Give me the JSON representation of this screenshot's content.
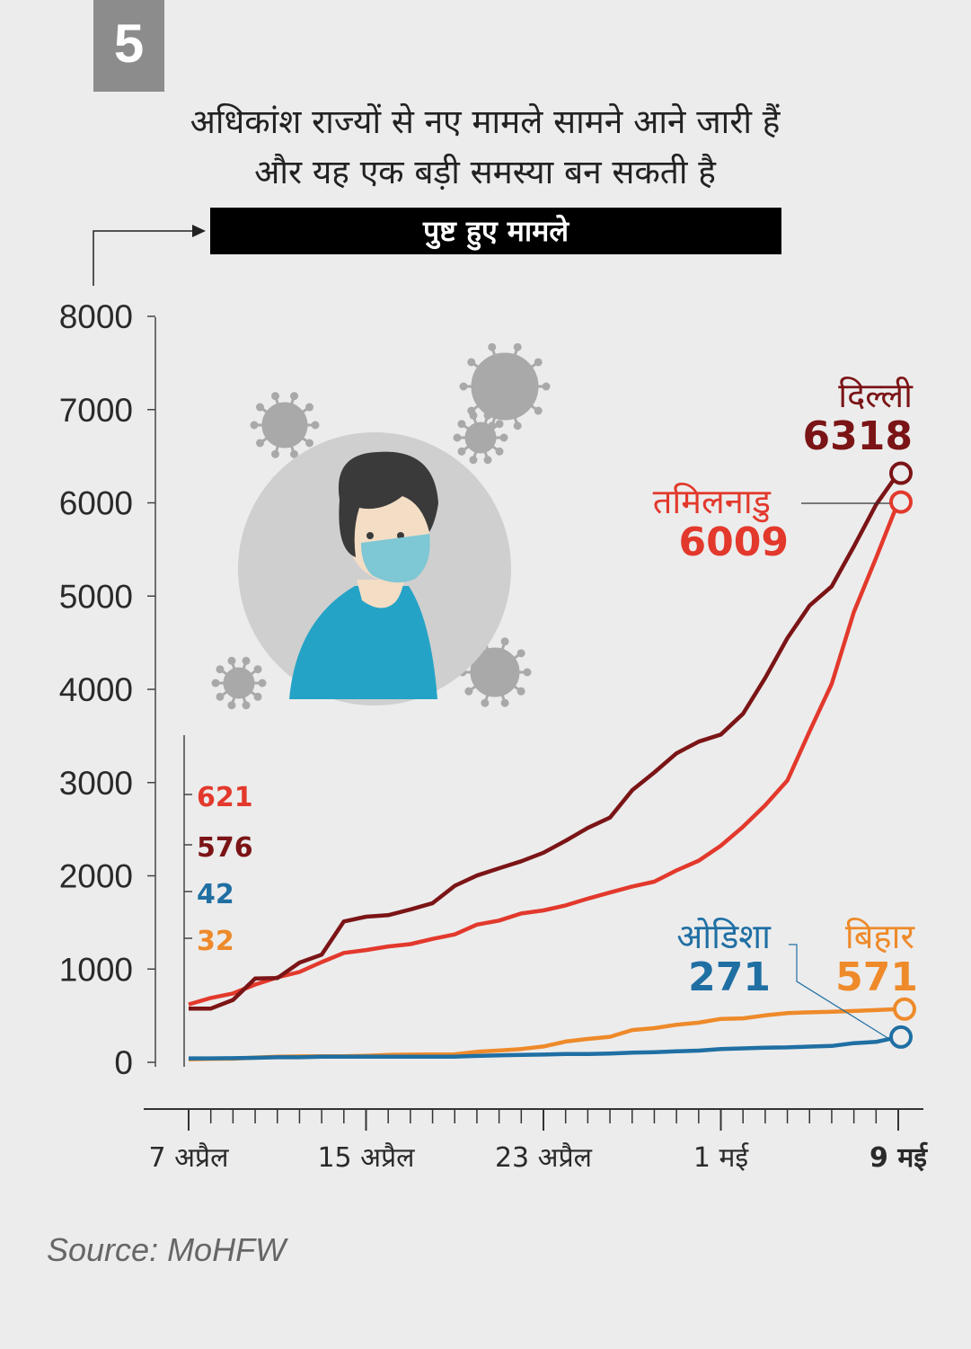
{
  "badge": "5",
  "title": {
    "line1": "अधिकांश राज्यों से नए मामले सामने आने जारी हैं",
    "line2": "और यह एक बड़ी समस्या बन सकती है"
  },
  "subtitle": "पुष्ट हुए मामले",
  "source": "Source: MoHFW",
  "colors": {
    "delhi": "#7b1416",
    "tamilnadu": "#e2392c",
    "odisha": "#1f6fa3",
    "bihar": "#ee8a2a",
    "badge": "#8c8c8c"
  },
  "icons": [
    "virus-icon",
    "masked-person-icon"
  ],
  "chart_data": {
    "type": "line",
    "ylim": [
      0,
      8000
    ],
    "yticks": [
      "8000",
      "7000",
      "6000",
      "5000",
      "4000",
      "3000",
      "2000",
      "1000",
      "0"
    ],
    "x_labels": [
      "7 अप्रैल",
      "15 अप्रैल",
      "23 अप्रैल",
      "1 मई",
      "9 मई"
    ],
    "x": [
      "2020-04-07",
      "2020-04-08",
      "2020-04-09",
      "2020-04-10",
      "2020-04-11",
      "2020-04-12",
      "2020-04-13",
      "2020-04-14",
      "2020-04-15",
      "2020-04-16",
      "2020-04-17",
      "2020-04-18",
      "2020-04-19",
      "2020-04-20",
      "2020-04-21",
      "2020-04-22",
      "2020-04-23",
      "2020-04-24",
      "2020-04-25",
      "2020-04-26",
      "2020-04-27",
      "2020-04-28",
      "2020-04-29",
      "2020-04-30",
      "2020-05-01",
      "2020-05-02",
      "2020-05-03",
      "2020-05-04",
      "2020-05-05",
      "2020-05-06",
      "2020-05-07",
      "2020-05-08",
      "2020-05-09"
    ],
    "series": [
      {
        "name": "दिल्ली",
        "color": "#7b1416",
        "start_label": "576",
        "end_label": "6318",
        "values": [
          576,
          576,
          669,
          898,
          903,
          1069,
          1154,
          1510,
          1561,
          1578,
          1640,
          1707,
          1893,
          2003,
          2081,
          2156,
          2248,
          2376,
          2514,
          2625,
          2918,
          3108,
          3314,
          3439,
          3515,
          3738,
          4122,
          4549,
          4898,
          5104,
          5532,
          5980,
          6318
        ]
      },
      {
        "name": "तमिलनाडु",
        "color": "#e2392c",
        "start_label": "621",
        "end_label": "6009",
        "values": [
          621,
          690,
          738,
          834,
          911,
          969,
          1075,
          1173,
          1204,
          1242,
          1267,
          1323,
          1372,
          1477,
          1520,
          1596,
          1629,
          1683,
          1755,
          1821,
          1885,
          1937,
          2058,
          2162,
          2323,
          2526,
          2757,
          3023,
          3550,
          4058,
          4829,
          5409,
          6009
        ]
      },
      {
        "name": "ओडिशा",
        "color": "#1f6fa3",
        "start_label": "42",
        "end_label": "271",
        "values": [
          42,
          42,
          44,
          48,
          54,
          54,
          60,
          60,
          60,
          60,
          60,
          60,
          61,
          68,
          74,
          79,
          83,
          89,
          90,
          94,
          103,
          108,
          118,
          125,
          143,
          149,
          157,
          160,
          169,
          175,
          205,
          219,
          271
        ]
      },
      {
        "name": "बिहार",
        "color": "#ee8a2a",
        "start_label": "32",
        "end_label": "571",
        "values": [
          32,
          38,
          39,
          51,
          60,
          64,
          65,
          66,
          70,
          80,
          83,
          85,
          86,
          113,
          126,
          143,
          170,
          223,
          251,
          274,
          346,
          366,
          403,
          425,
          466,
          471,
          503,
          528,
          536,
          542,
          550,
          560,
          571
        ]
      }
    ]
  }
}
